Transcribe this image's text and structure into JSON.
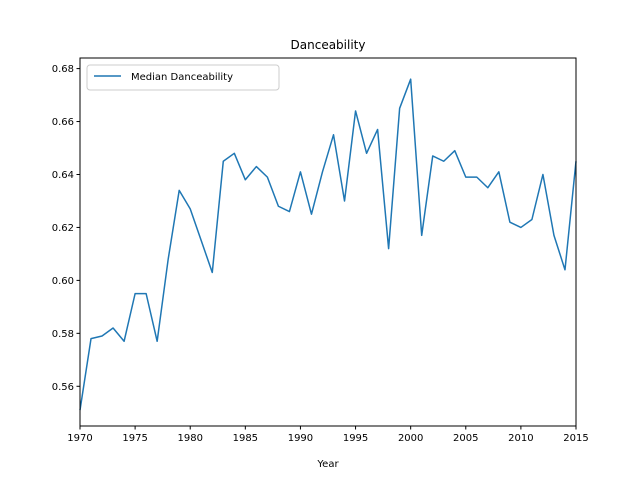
{
  "chart_data": {
    "type": "line",
    "title": "Danceability",
    "xlabel": "Year",
    "ylabel": "",
    "xlim": [
      1970,
      2015
    ],
    "ylim": [
      0.545,
      0.684
    ],
    "xticks": [
      "1970",
      "1975",
      "1980",
      "1985",
      "1990",
      "1995",
      "2000",
      "2005",
      "2010",
      "2015"
    ],
    "yticks": [
      "0.56",
      "0.58",
      "0.60",
      "0.62",
      "0.64",
      "0.66",
      "0.68"
    ],
    "grid": false,
    "legend_position": "top-left",
    "x": [
      1970,
      1971,
      1972,
      1973,
      1974,
      1975,
      1976,
      1977,
      1978,
      1979,
      1980,
      1981,
      1982,
      1983,
      1984,
      1985,
      1986,
      1987,
      1988,
      1989,
      1990,
      1991,
      1992,
      1993,
      1994,
      1995,
      1996,
      1997,
      1998,
      1999,
      2000,
      2001,
      2002,
      2003,
      2004,
      2005,
      2006,
      2007,
      2008,
      2009,
      2010,
      2011,
      2012,
      2013,
      2014,
      2015
    ],
    "series": [
      {
        "name": "Median Danceability",
        "color": "#1f77b4",
        "values": [
          0.551,
          0.578,
          0.579,
          0.582,
          0.577,
          0.595,
          0.595,
          0.577,
          0.608,
          0.634,
          0.627,
          0.615,
          0.603,
          0.645,
          0.648,
          0.638,
          0.643,
          0.639,
          0.628,
          0.626,
          0.641,
          0.625,
          0.641,
          0.655,
          0.63,
          0.664,
          0.648,
          0.657,
          0.612,
          0.665,
          0.676,
          0.617,
          0.647,
          0.645,
          0.649,
          0.639,
          0.639,
          0.635,
          0.641,
          0.622,
          0.62,
          0.623,
          0.64,
          0.617,
          0.604,
          0.645
        ]
      }
    ]
  }
}
